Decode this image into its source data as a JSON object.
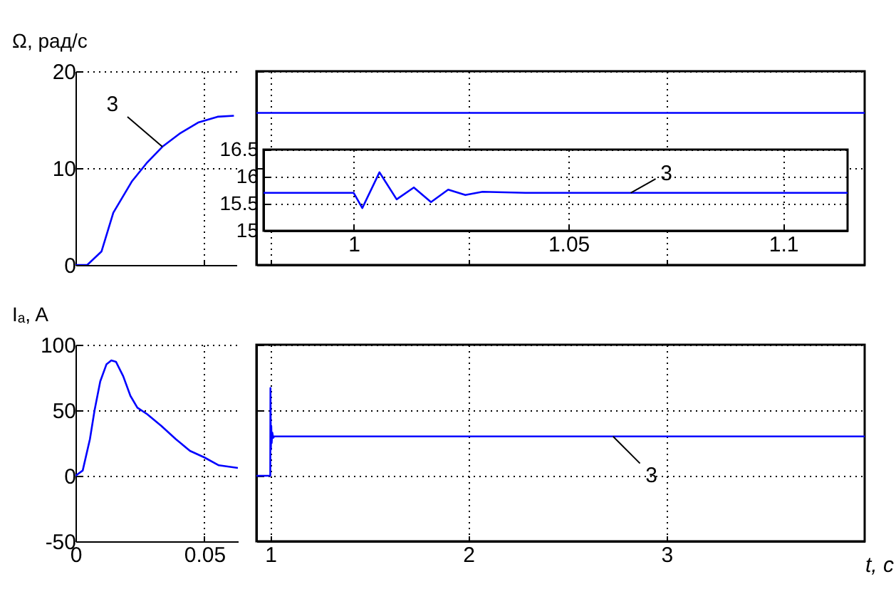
{
  "chart_data": [
    {
      "type": "line",
      "ylabel": "Ω, рад/с",
      "color": "#0000ff",
      "x": [
        0,
        0.0046,
        0.0102,
        0.0148,
        0.022,
        0.0278,
        0.034,
        0.041,
        0.048,
        0.0556,
        0.062
      ],
      "values": [
        0,
        0,
        1.4,
        5.4,
        8.6,
        10.5,
        12.2,
        13.6,
        14.7,
        15.3,
        15.4
      ],
      "xlim": [
        0,
        0.063
      ],
      "xticks": [
        0,
        0.05
      ],
      "ylim": [
        0,
        20
      ],
      "yticks": [
        0,
        10,
        20
      ],
      "grid": true,
      "tick_labels": "y",
      "annotations": [
        {
          "text": "3",
          "x": 0.034,
          "y": 12.2
        }
      ]
    },
    {
      "type": "line",
      "color": "#0000ff",
      "x": [
        0.93,
        4.0
      ],
      "values": [
        15.7,
        15.7
      ],
      "xlim": [
        0.93,
        4.0
      ],
      "xticks": [
        1,
        2,
        3
      ],
      "ylim": [
        0,
        20
      ],
      "yticks": [
        0,
        10,
        20
      ],
      "grid": true,
      "tick_labels": false
    },
    {
      "type": "line",
      "color": "#0000ff",
      "x": [
        0.979,
        1.0,
        1.002,
        1.006,
        1.01,
        1.014,
        1.018,
        1.022,
        1.026,
        1.03,
        1.04,
        1.05,
        1.115
      ],
      "values": [
        15.7,
        15.7,
        15.42,
        16.08,
        15.58,
        15.8,
        15.53,
        15.76,
        15.66,
        15.72,
        15.7,
        15.7,
        15.7
      ],
      "xlim": [
        0.979,
        1.115
      ],
      "xticks": [
        1,
        1.05,
        1.1
      ],
      "ylim": [
        15,
        16.5
      ],
      "yticks": [
        15,
        15.5,
        16,
        16.5
      ],
      "grid": true,
      "annotations": [
        {
          "text": "3",
          "x": 1.0645,
          "y": 15.7
        }
      ]
    },
    {
      "type": "line",
      "ylabel": "Iₐ, A",
      "color": "#0000ff",
      "x": [
        0,
        0.0028,
        0.0056,
        0.0074,
        0.0096,
        0.012,
        0.0139,
        0.0157,
        0.0185,
        0.0213,
        0.024,
        0.0278,
        0.0333,
        0.0389,
        0.0444,
        0.05,
        0.0556,
        0.063
      ],
      "values": [
        0,
        4,
        28,
        50,
        72,
        85,
        88,
        87,
        76,
        61,
        52,
        47,
        38,
        28,
        19,
        14,
        8,
        6
      ],
      "xlim": [
        0,
        0.063
      ],
      "xticks": [
        0,
        0.05
      ],
      "ylim": [
        -50,
        100
      ],
      "yticks": [
        -50,
        0,
        50,
        100
      ],
      "grid": true
    },
    {
      "type": "line",
      "xlabel": "t, c",
      "color": "#0000ff",
      "x": [
        0.93,
        1.0,
        1.001,
        1.003,
        1.005,
        1.007,
        1.01,
        1.015,
        1.02,
        4.0
      ],
      "values": [
        0,
        0,
        67,
        20,
        38,
        25,
        33,
        29,
        30,
        30
      ],
      "xlim": [
        0.93,
        4.0
      ],
      "xticks": [
        1,
        2,
        3
      ],
      "ylim": [
        -50,
        100
      ],
      "yticks": [
        -50,
        0,
        50,
        100
      ],
      "grid": true,
      "tick_labels": "x",
      "annotations": [
        {
          "text": "3",
          "x": 2.73,
          "y": 30
        }
      ]
    }
  ]
}
